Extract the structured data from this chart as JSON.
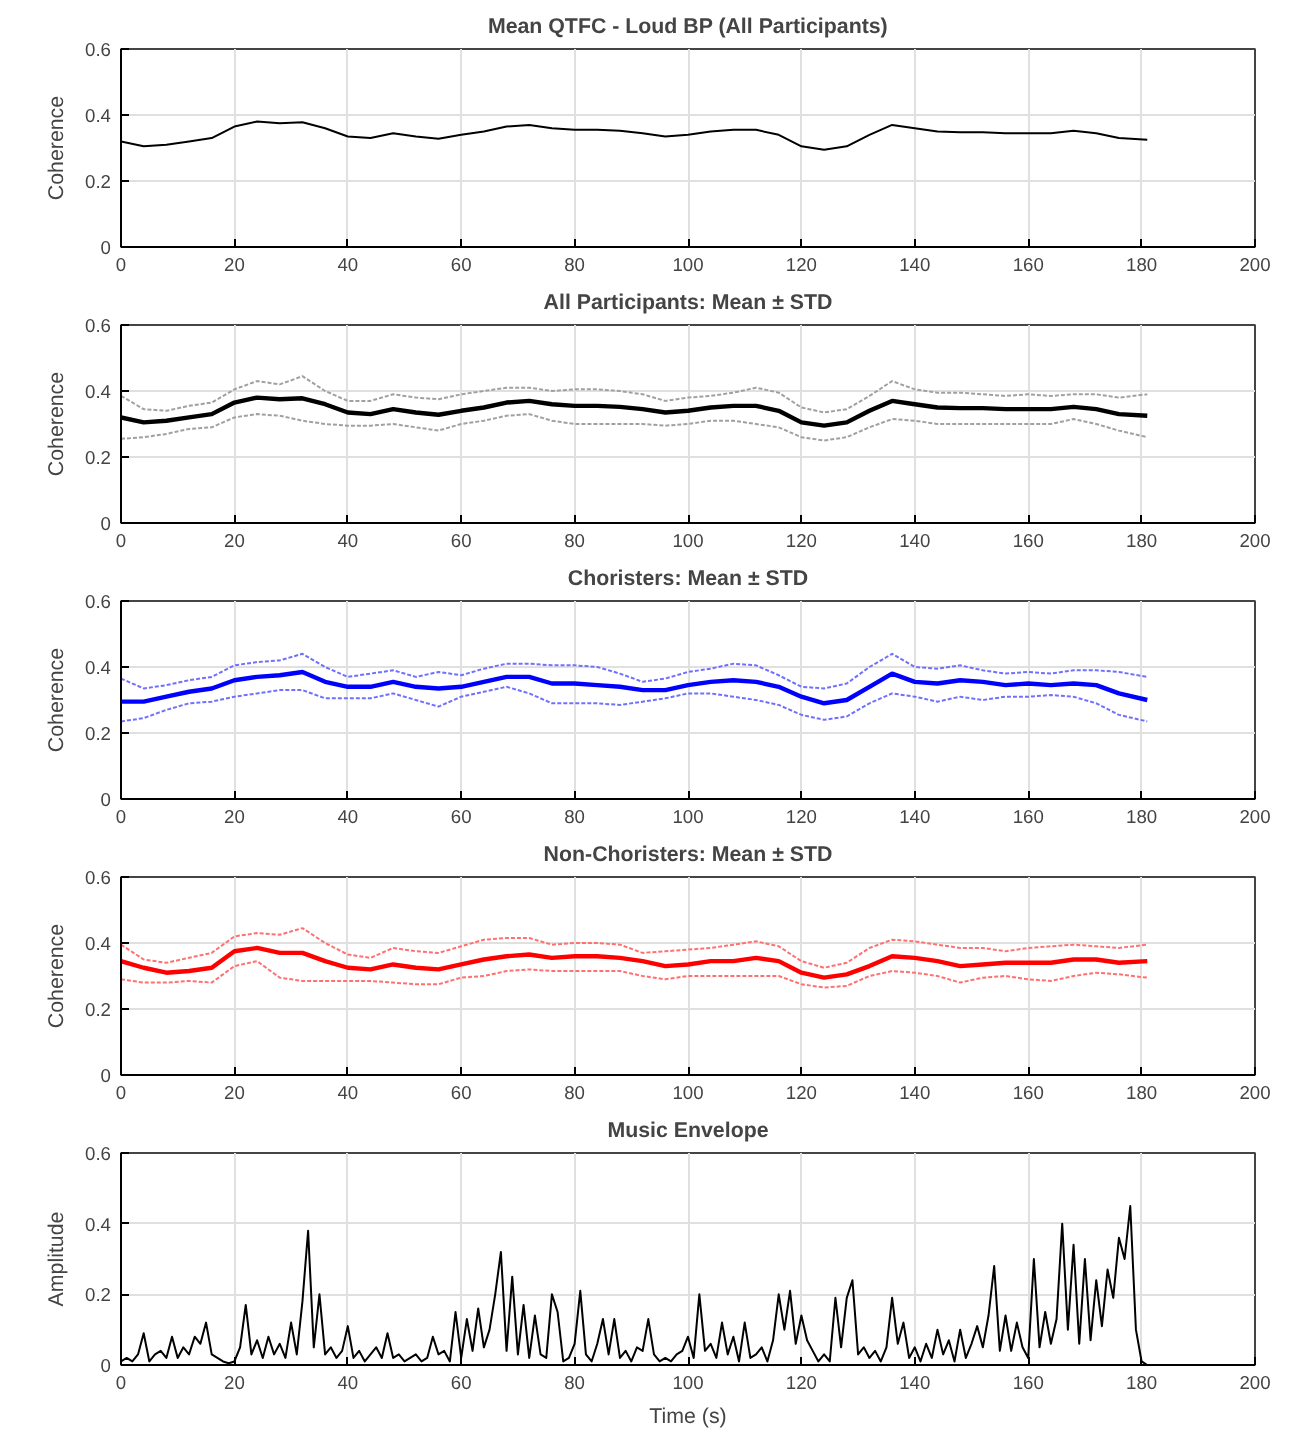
{
  "chart_data": [
    {
      "type": "line",
      "title": "Mean QTFC - Loud BP (All Participants)",
      "ylabel": "Coherence",
      "xlim": [
        0,
        200
      ],
      "xticks": [
        0,
        20,
        40,
        60,
        80,
        100,
        120,
        140,
        160,
        180,
        200
      ],
      "ylim": [
        0,
        0.6
      ],
      "yticks": [
        0,
        0.2,
        0.4,
        0.6
      ],
      "grid": true,
      "x": [
        0,
        4,
        8,
        12,
        16,
        20,
        24,
        28,
        32,
        36,
        40,
        44,
        48,
        52,
        56,
        60,
        64,
        68,
        72,
        76,
        80,
        84,
        88,
        92,
        96,
        100,
        104,
        108,
        112,
        116,
        120,
        124,
        128,
        132,
        136,
        140,
        144,
        148,
        152,
        156,
        160,
        164,
        168,
        172,
        176,
        181
      ],
      "series": [
        {
          "color": "#000000",
          "line_style": "solid",
          "values": [
            0.32,
            0.305,
            0.31,
            0.32,
            0.33,
            0.365,
            0.38,
            0.375,
            0.378,
            0.36,
            0.335,
            0.33,
            0.345,
            0.335,
            0.328,
            0.34,
            0.35,
            0.365,
            0.37,
            0.36,
            0.355,
            0.355,
            0.352,
            0.345,
            0.335,
            0.34,
            0.35,
            0.355,
            0.355,
            0.34,
            0.305,
            0.295,
            0.305,
            0.34,
            0.37,
            0.36,
            0.35,
            0.348,
            0.348,
            0.345,
            0.345,
            0.345,
            0.352,
            0.345,
            0.33,
            0.325
          ]
        }
      ]
    },
    {
      "type": "line",
      "title": "All Participants: Mean ± STD",
      "ylabel": "Coherence",
      "xlim": [
        0,
        200
      ],
      "xticks": [
        0,
        20,
        40,
        60,
        80,
        100,
        120,
        140,
        160,
        180,
        200
      ],
      "ylim": [
        0,
        0.6
      ],
      "yticks": [
        0,
        0.2,
        0.4,
        0.6
      ],
      "grid": true,
      "x": [
        0,
        4,
        8,
        12,
        16,
        20,
        24,
        28,
        32,
        36,
        40,
        44,
        48,
        52,
        56,
        60,
        64,
        68,
        72,
        76,
        80,
        84,
        88,
        92,
        96,
        100,
        104,
        108,
        112,
        116,
        120,
        124,
        128,
        132,
        136,
        140,
        144,
        148,
        152,
        156,
        160,
        164,
        168,
        172,
        176,
        181
      ],
      "series": [
        {
          "color": "#000000",
          "line_style": "solid",
          "values": [
            0.32,
            0.305,
            0.31,
            0.32,
            0.33,
            0.365,
            0.38,
            0.375,
            0.378,
            0.36,
            0.335,
            0.33,
            0.345,
            0.335,
            0.328,
            0.34,
            0.35,
            0.365,
            0.37,
            0.36,
            0.355,
            0.355,
            0.352,
            0.345,
            0.335,
            0.34,
            0.35,
            0.355,
            0.355,
            0.34,
            0.305,
            0.295,
            0.305,
            0.34,
            0.37,
            0.36,
            0.35,
            0.348,
            0.348,
            0.345,
            0.345,
            0.345,
            0.352,
            0.345,
            0.33,
            0.325
          ]
        },
        {
          "color": "#a0a0a0",
          "line_style": "dotted",
          "values": [
            0.385,
            0.345,
            0.34,
            0.355,
            0.365,
            0.405,
            0.43,
            0.42,
            0.445,
            0.4,
            0.37,
            0.37,
            0.39,
            0.38,
            0.375,
            0.39,
            0.4,
            0.41,
            0.41,
            0.4,
            0.405,
            0.405,
            0.4,
            0.39,
            0.37,
            0.38,
            0.385,
            0.395,
            0.41,
            0.395,
            0.35,
            0.335,
            0.345,
            0.385,
            0.43,
            0.405,
            0.395,
            0.395,
            0.39,
            0.385,
            0.39,
            0.385,
            0.39,
            0.39,
            0.38,
            0.39
          ]
        },
        {
          "color": "#a0a0a0",
          "line_style": "dotted",
          "values": [
            0.255,
            0.26,
            0.27,
            0.285,
            0.29,
            0.32,
            0.33,
            0.325,
            0.31,
            0.3,
            0.295,
            0.295,
            0.3,
            0.29,
            0.28,
            0.3,
            0.31,
            0.325,
            0.33,
            0.31,
            0.3,
            0.3,
            0.3,
            0.3,
            0.295,
            0.3,
            0.31,
            0.31,
            0.3,
            0.29,
            0.26,
            0.25,
            0.26,
            0.29,
            0.315,
            0.31,
            0.3,
            0.3,
            0.3,
            0.3,
            0.3,
            0.3,
            0.315,
            0.3,
            0.28,
            0.26
          ]
        }
      ]
    },
    {
      "type": "line",
      "title": "Choristers: Mean ± STD",
      "ylabel": "Coherence",
      "xlim": [
        0,
        200
      ],
      "xticks": [
        0,
        20,
        40,
        60,
        80,
        100,
        120,
        140,
        160,
        180,
        200
      ],
      "ylim": [
        0,
        0.6
      ],
      "yticks": [
        0,
        0.2,
        0.4,
        0.6
      ],
      "grid": true,
      "x": [
        0,
        4,
        8,
        12,
        16,
        20,
        24,
        28,
        32,
        36,
        40,
        44,
        48,
        52,
        56,
        60,
        64,
        68,
        72,
        76,
        80,
        84,
        88,
        92,
        96,
        100,
        104,
        108,
        112,
        116,
        120,
        124,
        128,
        132,
        136,
        140,
        144,
        148,
        152,
        156,
        160,
        164,
        168,
        172,
        176,
        181
      ],
      "series": [
        {
          "color": "#0000ff",
          "line_style": "solid",
          "values": [
            0.295,
            0.295,
            0.31,
            0.325,
            0.335,
            0.36,
            0.37,
            0.375,
            0.385,
            0.355,
            0.34,
            0.34,
            0.355,
            0.34,
            0.335,
            0.34,
            0.355,
            0.37,
            0.37,
            0.35,
            0.35,
            0.345,
            0.34,
            0.33,
            0.33,
            0.345,
            0.355,
            0.36,
            0.355,
            0.34,
            0.31,
            0.29,
            0.3,
            0.34,
            0.38,
            0.355,
            0.35,
            0.36,
            0.355,
            0.345,
            0.35,
            0.345,
            0.35,
            0.345,
            0.32,
            0.3
          ]
        },
        {
          "color": "#7070ff",
          "line_style": "dotted",
          "values": [
            0.365,
            0.335,
            0.345,
            0.36,
            0.37,
            0.405,
            0.415,
            0.42,
            0.44,
            0.4,
            0.37,
            0.38,
            0.39,
            0.37,
            0.385,
            0.375,
            0.395,
            0.41,
            0.41,
            0.405,
            0.405,
            0.4,
            0.38,
            0.355,
            0.365,
            0.385,
            0.395,
            0.41,
            0.405,
            0.375,
            0.34,
            0.335,
            0.35,
            0.4,
            0.44,
            0.4,
            0.395,
            0.405,
            0.39,
            0.38,
            0.385,
            0.38,
            0.39,
            0.39,
            0.385,
            0.37
          ]
        },
        {
          "color": "#7070ff",
          "line_style": "dotted",
          "values": [
            0.235,
            0.245,
            0.27,
            0.29,
            0.295,
            0.31,
            0.32,
            0.33,
            0.33,
            0.305,
            0.305,
            0.305,
            0.32,
            0.3,
            0.28,
            0.31,
            0.325,
            0.34,
            0.32,
            0.29,
            0.29,
            0.29,
            0.285,
            0.295,
            0.305,
            0.32,
            0.32,
            0.31,
            0.3,
            0.285,
            0.255,
            0.24,
            0.25,
            0.29,
            0.32,
            0.31,
            0.295,
            0.31,
            0.3,
            0.31,
            0.31,
            0.315,
            0.31,
            0.29,
            0.255,
            0.235
          ]
        }
      ]
    },
    {
      "type": "line",
      "title": "Non-Choristers: Mean ± STD",
      "ylabel": "Coherence",
      "xlim": [
        0,
        200
      ],
      "xticks": [
        0,
        20,
        40,
        60,
        80,
        100,
        120,
        140,
        160,
        180,
        200
      ],
      "ylim": [
        0,
        0.6
      ],
      "yticks": [
        0,
        0.2,
        0.4,
        0.6
      ],
      "grid": true,
      "x": [
        0,
        4,
        8,
        12,
        16,
        20,
        24,
        28,
        32,
        36,
        40,
        44,
        48,
        52,
        56,
        60,
        64,
        68,
        72,
        76,
        80,
        84,
        88,
        92,
        96,
        100,
        104,
        108,
        112,
        116,
        120,
        124,
        128,
        132,
        136,
        140,
        144,
        148,
        152,
        156,
        160,
        164,
        168,
        172,
        176,
        181
      ],
      "series": [
        {
          "color": "#ff0000",
          "line_style": "solid",
          "values": [
            0.345,
            0.325,
            0.31,
            0.315,
            0.325,
            0.375,
            0.385,
            0.37,
            0.37,
            0.345,
            0.325,
            0.32,
            0.335,
            0.325,
            0.32,
            0.335,
            0.35,
            0.36,
            0.365,
            0.355,
            0.36,
            0.36,
            0.355,
            0.345,
            0.33,
            0.335,
            0.345,
            0.345,
            0.355,
            0.345,
            0.31,
            0.295,
            0.305,
            0.33,
            0.36,
            0.355,
            0.345,
            0.33,
            0.335,
            0.34,
            0.34,
            0.34,
            0.35,
            0.35,
            0.34,
            0.345
          ]
        },
        {
          "color": "#ff7070",
          "line_style": "dotted",
          "values": [
            0.395,
            0.35,
            0.34,
            0.355,
            0.37,
            0.42,
            0.43,
            0.425,
            0.445,
            0.4,
            0.365,
            0.355,
            0.385,
            0.375,
            0.37,
            0.39,
            0.41,
            0.415,
            0.415,
            0.395,
            0.4,
            0.4,
            0.395,
            0.37,
            0.375,
            0.38,
            0.385,
            0.395,
            0.405,
            0.39,
            0.345,
            0.325,
            0.34,
            0.385,
            0.41,
            0.405,
            0.395,
            0.385,
            0.385,
            0.375,
            0.385,
            0.39,
            0.395,
            0.39,
            0.385,
            0.395
          ]
        },
        {
          "color": "#ff7070",
          "line_style": "dotted",
          "values": [
            0.29,
            0.28,
            0.28,
            0.285,
            0.28,
            0.33,
            0.345,
            0.295,
            0.285,
            0.285,
            0.285,
            0.285,
            0.28,
            0.275,
            0.275,
            0.295,
            0.3,
            0.315,
            0.32,
            0.315,
            0.315,
            0.315,
            0.315,
            0.3,
            0.29,
            0.3,
            0.3,
            0.3,
            0.3,
            0.3,
            0.275,
            0.265,
            0.27,
            0.3,
            0.315,
            0.31,
            0.3,
            0.28,
            0.295,
            0.3,
            0.29,
            0.285,
            0.3,
            0.31,
            0.305,
            0.295
          ]
        }
      ]
    },
    {
      "type": "line",
      "title": "Music Envelope",
      "xlabel": "Time (s)",
      "ylabel": "Amplitude",
      "xlim": [
        0,
        200
      ],
      "xticks": [
        0,
        20,
        40,
        60,
        80,
        100,
        120,
        140,
        160,
        180,
        200
      ],
      "ylim": [
        0,
        0.6
      ],
      "yticks": [
        0,
        0.2,
        0.4,
        0.6
      ],
      "grid": true,
      "x": [
        0,
        1,
        2,
        3,
        4,
        5,
        6,
        7,
        8,
        9,
        10,
        11,
        12,
        13,
        14,
        15,
        16,
        17,
        18,
        19,
        20,
        21,
        22,
        23,
        24,
        25,
        26,
        27,
        28,
        29,
        30,
        31,
        32,
        33,
        34,
        35,
        36,
        37,
        38,
        39,
        40,
        41,
        42,
        43,
        44,
        45,
        46,
        47,
        48,
        49,
        50,
        51,
        52,
        53,
        54,
        55,
        56,
        57,
        58,
        59,
        60,
        61,
        62,
        63,
        64,
        65,
        66,
        67,
        68,
        69,
        70,
        71,
        72,
        73,
        74,
        75,
        76,
        77,
        78,
        79,
        80,
        81,
        82,
        83,
        84,
        85,
        86,
        87,
        88,
        89,
        90,
        91,
        92,
        93,
        94,
        95,
        96,
        97,
        98,
        99,
        100,
        101,
        102,
        103,
        104,
        105,
        106,
        107,
        108,
        109,
        110,
        111,
        112,
        113,
        114,
        115,
        116,
        117,
        118,
        119,
        120,
        121,
        122,
        123,
        124,
        125,
        126,
        127,
        128,
        129,
        130,
        131,
        132,
        133,
        134,
        135,
        136,
        137,
        138,
        139,
        140,
        141,
        142,
        143,
        144,
        145,
        146,
        147,
        148,
        149,
        150,
        151,
        152,
        153,
        154,
        155,
        156,
        157,
        158,
        159,
        160,
        161,
        162,
        163,
        164,
        165,
        166,
        167,
        168,
        169,
        170,
        171,
        172,
        173,
        174,
        175,
        176,
        177,
        178,
        179,
        180,
        181
      ],
      "series": [
        {
          "color": "#000000",
          "line_style": "solid",
          "values": [
            0.01,
            0.02,
            0.01,
            0.03,
            0.09,
            0.01,
            0.03,
            0.04,
            0.02,
            0.08,
            0.02,
            0.05,
            0.03,
            0.08,
            0.06,
            0.12,
            0.03,
            0.02,
            0.01,
            0.005,
            0.01,
            0.05,
            0.17,
            0.03,
            0.07,
            0.02,
            0.08,
            0.03,
            0.06,
            0.02,
            0.12,
            0.03,
            0.18,
            0.38,
            0.05,
            0.2,
            0.03,
            0.05,
            0.02,
            0.04,
            0.11,
            0.02,
            0.04,
            0.01,
            0.03,
            0.05,
            0.02,
            0.09,
            0.02,
            0.03,
            0.01,
            0.02,
            0.03,
            0.01,
            0.02,
            0.08,
            0.03,
            0.04,
            0.01,
            0.15,
            0.02,
            0.13,
            0.04,
            0.16,
            0.05,
            0.1,
            0.2,
            0.32,
            0.04,
            0.25,
            0.03,
            0.17,
            0.02,
            0.14,
            0.03,
            0.02,
            0.2,
            0.15,
            0.01,
            0.02,
            0.06,
            0.21,
            0.03,
            0.01,
            0.06,
            0.13,
            0.03,
            0.13,
            0.02,
            0.04,
            0.01,
            0.05,
            0.04,
            0.13,
            0.03,
            0.01,
            0.02,
            0.01,
            0.03,
            0.04,
            0.08,
            0.02,
            0.2,
            0.04,
            0.06,
            0.02,
            0.12,
            0.03,
            0.08,
            0.01,
            0.12,
            0.02,
            0.03,
            0.05,
            0.01,
            0.07,
            0.2,
            0.1,
            0.21,
            0.06,
            0.14,
            0.07,
            0.04,
            0.01,
            0.03,
            0.01,
            0.19,
            0.05,
            0.19,
            0.24,
            0.03,
            0.05,
            0.02,
            0.04,
            0.01,
            0.05,
            0.19,
            0.06,
            0.12,
            0.02,
            0.05,
            0.01,
            0.06,
            0.02,
            0.1,
            0.03,
            0.07,
            0.01,
            0.1,
            0.02,
            0.06,
            0.11,
            0.05,
            0.14,
            0.28,
            0.04,
            0.14,
            0.04,
            0.12,
            0.05,
            0.02,
            0.3,
            0.05,
            0.15,
            0.06,
            0.13,
            0.4,
            0.1,
            0.34,
            0.06,
            0.3,
            0.07,
            0.24,
            0.11,
            0.27,
            0.19,
            0.36,
            0.3,
            0.45,
            0.1,
            0.01,
            0.0
          ]
        }
      ]
    }
  ]
}
